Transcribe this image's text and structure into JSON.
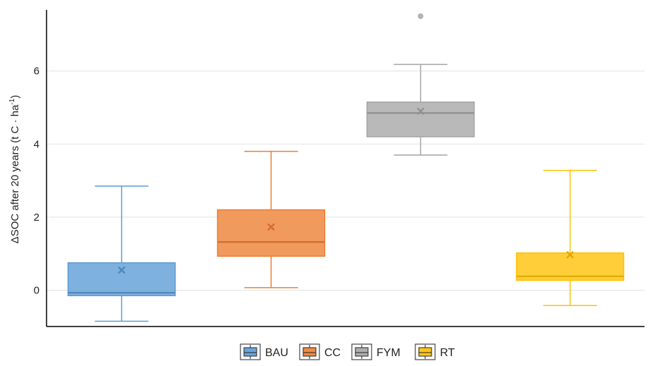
{
  "chart_data": {
    "type": "box",
    "title": "",
    "xlabel": "",
    "ylabel": {
      "main": "ΔSOC after 20 years  (t C · ha",
      "superscript": "-1",
      "close": ")"
    },
    "ylim": [
      -1.0,
      7.7
    ],
    "yticks": [
      {
        "value": 0,
        "label": "0"
      },
      {
        "value": 2,
        "label": "2"
      },
      {
        "value": 4,
        "label": "4"
      },
      {
        "value": 6,
        "label": "6"
      }
    ],
    "grid": true,
    "legend_position": "bottom",
    "series": [
      {
        "name": "BAU",
        "color": "#5b9bd5",
        "whisker_low": -0.85,
        "q1": -0.15,
        "median": -0.07,
        "q3": 0.75,
        "whisker_high": 2.85,
        "mean": 0.55,
        "outliers": []
      },
      {
        "name": "CC",
        "color": "#ed7d31",
        "whisker_low": 0.07,
        "q1": 0.93,
        "median": 1.32,
        "q3": 2.2,
        "whisker_high": 3.8,
        "mean": 1.73,
        "outliers": []
      },
      {
        "name": "FYM",
        "color": "#a5a5a5",
        "whisker_low": 3.7,
        "q1": 4.2,
        "median": 4.85,
        "q3": 5.15,
        "whisker_high": 6.18,
        "mean": 4.9,
        "outliers": [
          7.5
        ]
      },
      {
        "name": "RT",
        "color": "#ffc000",
        "whisker_low": -0.42,
        "q1": 0.27,
        "median": 0.38,
        "q3": 1.02,
        "whisker_high": 3.28,
        "mean": 0.97,
        "outliers": []
      }
    ]
  }
}
